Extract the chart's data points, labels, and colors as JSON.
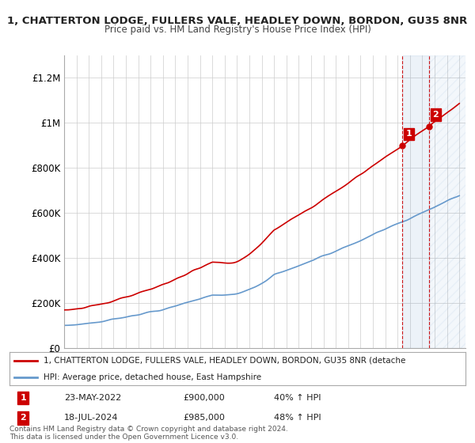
{
  "title1": "1, CHATTERTON LODGE, FULLERS VALE, HEADLEY DOWN, BORDON, GU35 8NR",
  "title2": "Price paid vs. HM Land Registry's House Price Index (HPI)",
  "ylabel_ticks": [
    "£0",
    "£200K",
    "£400K",
    "£600K",
    "£800K",
    "£1M",
    "£1.2M"
  ],
  "ytick_values": [
    0,
    200000,
    400000,
    600000,
    800000,
    1000000,
    1200000
  ],
  "ylim": [
    0,
    1300000
  ],
  "xlim_start": 1995.0,
  "xlim_end": 2027.5,
  "red_color": "#cc0000",
  "blue_color": "#6699cc",
  "transaction1_year": 2022.388,
  "transaction1_price": 900000,
  "transaction1_label": "1",
  "transaction2_year": 2024.543,
  "transaction2_price": 985000,
  "transaction2_label": "2",
  "legend_red_text": "1, CHATTERTON LODGE, FULLERS VALE, HEADLEY DOWN, BORDON, GU35 8NR (detache",
  "legend_blue_text": "HPI: Average price, detached house, East Hampshire",
  "footnote1_num": "1",
  "footnote1_date": "23-MAY-2022",
  "footnote1_price": "£900,000",
  "footnote1_hpi": "40% ↑ HPI",
  "footnote2_num": "2",
  "footnote2_date": "18-JUL-2024",
  "footnote2_price": "£985,000",
  "footnote2_hpi": "48% ↑ HPI",
  "copyright_text": "Contains HM Land Registry data © Crown copyright and database right 2024.\nThis data is licensed under the Open Government Licence v3.0.",
  "background_color": "#ffffff",
  "grid_color": "#cccccc"
}
